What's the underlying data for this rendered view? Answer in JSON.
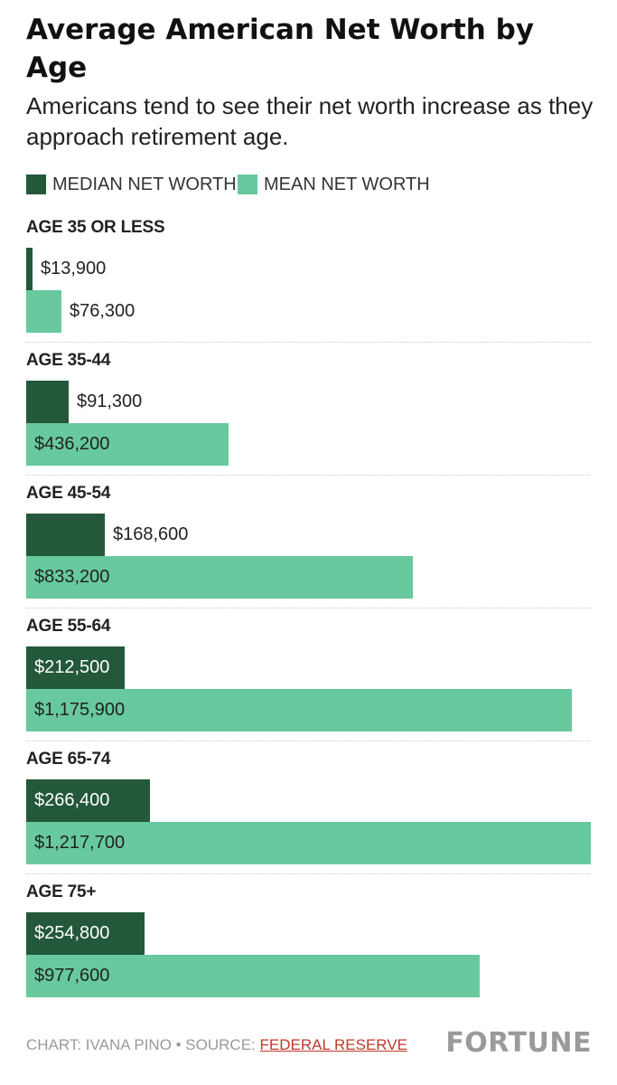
{
  "header": {
    "title": "Average American Net Worth by Age",
    "subtitle": "Americans tend to see their net worth increase as they approach retirement age."
  },
  "legend": {
    "median_label": "MEDIAN NET WORTH",
    "mean_label": "MEAN NET WORTH"
  },
  "colors": {
    "median": "#23583a",
    "mean": "#67c99d",
    "label_on_dark": "#ffffff",
    "label_on_light": "#222222"
  },
  "chart_data": {
    "type": "bar",
    "orientation": "horizontal",
    "categories": [
      "AGE 35 OR LESS",
      "AGE 35-44",
      "AGE 45-54",
      "AGE 55-64",
      "AGE 65-74",
      "AGE 75+"
    ],
    "series": [
      {
        "name": "MEDIAN NET WORTH",
        "values": [
          13900,
          91300,
          168600,
          212500,
          266400,
          254800
        ],
        "labels": [
          "$13,900",
          "$91,300",
          "$168,600",
          "$212,500",
          "$266,400",
          "$254,800"
        ]
      },
      {
        "name": "MEAN NET WORTH",
        "values": [
          76300,
          436200,
          833200,
          1175900,
          1217700,
          977600
        ],
        "labels": [
          "$76,300",
          "$436,200",
          "$833,200",
          "$1,175,900",
          "$1,217,700",
          "$977,600"
        ]
      }
    ],
    "xlim": [
      0,
      1217700
    ],
    "grid": false
  },
  "footer": {
    "credit": "CHART: IVANA PINO • SOURCE: ",
    "source_link": "FEDERAL RESERVE",
    "brand": "FORTUNE"
  }
}
